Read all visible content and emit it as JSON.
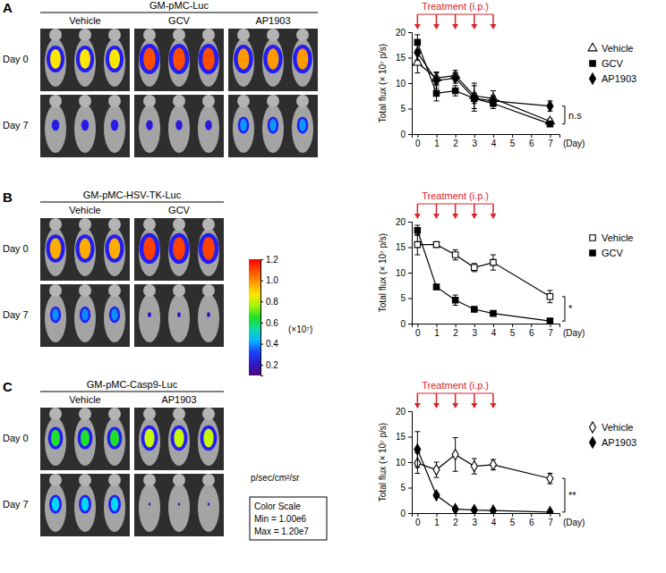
{
  "panels": [
    {
      "label": "A",
      "construct": "GM-pMC-Luc",
      "groups": [
        "Vehicle",
        "GCV",
        "AP1903"
      ],
      "rows": [
        "Day 0",
        "Day 7"
      ]
    },
    {
      "label": "B",
      "construct": "GM-pMC-HSV-TK-Luc",
      "groups": [
        "Vehicle",
        "GCV"
      ],
      "rows": [
        "Day 0",
        "Day 7"
      ]
    },
    {
      "label": "C",
      "construct": "GM-pMC-Casp9-Luc",
      "groups": [
        "Vehicle",
        "AP1903"
      ],
      "rows": [
        "Day 0",
        "Day 7"
      ]
    }
  ],
  "color_bar": {
    "range": [
      0.1,
      1.2
    ],
    "ticks": [
      0.2,
      0.4,
      0.6,
      0.8,
      {
        "value": 1,
        "label": "1.0"
      },
      1.2
    ],
    "label": "(×10⁷)",
    "unit": "p/sec/cm²/sr",
    "box": [
      "Color Scale",
      "Min = 1.00e6",
      "Max = 1.20e7"
    ]
  },
  "chart_data": [
    {
      "type": "line",
      "x": [
        0,
        1,
        2,
        3,
        4,
        7
      ],
      "xlim": [
        -0.3,
        7.5
      ],
      "xticks": [
        0,
        1,
        2,
        3,
        4,
        5,
        6,
        7
      ],
      "ylim": [
        0,
        20
      ],
      "yticks": [
        0,
        5,
        10,
        15,
        20
      ],
      "x_label": "(Day)",
      "y_label": "Total flux (× 10⁷ p/s)",
      "annotation": {
        "text": "Treatment (i.p.)",
        "x": [
          0,
          1,
          2,
          3,
          4
        ]
      },
      "significance": "n.s",
      "legend": "right",
      "series": [
        {
          "name": "Vehicle",
          "color": "#000000",
          "marker": "triangle-open",
          "values": [
            14,
            11,
            11.5,
            7.5,
            7,
            2.5
          ],
          "error": [
            2,
            1.2,
            1,
            2.5,
            1.5,
            0.5
          ]
        },
        {
          "name": "GCV",
          "color": "#000000",
          "marker": "square",
          "values": [
            18,
            8,
            8.5,
            7,
            6,
            2
          ],
          "error": [
            1.5,
            1.5,
            1,
            1,
            1,
            0.5
          ]
        },
        {
          "name": "AP1903",
          "color": "#000000",
          "marker": "diamond",
          "values": [
            16,
            10.5,
            11,
            7,
            6.5,
            5.5
          ],
          "error": [
            1.5,
            1.5,
            1,
            2.5,
            1,
            1
          ]
        }
      ]
    },
    {
      "type": "line",
      "x": [
        0,
        1,
        2,
        3,
        4,
        7
      ],
      "xlim": [
        -0.3,
        7.5
      ],
      "xticks": [
        0,
        1,
        2,
        3,
        4,
        5,
        6,
        7
      ],
      "ylim": [
        0,
        20
      ],
      "yticks": [
        0,
        5,
        10,
        15,
        20
      ],
      "x_label": "(Day)",
      "y_label": "Total flux (× 10⁷ p/s)",
      "annotation": {
        "text": "Treatment (i.p.)",
        "x": [
          0,
          1,
          2,
          3,
          4
        ]
      },
      "significance": "*",
      "legend": "right",
      "series": [
        {
          "name": "Vehicle",
          "color": "#000000",
          "marker": "square-open",
          "values": [
            15.5,
            15.5,
            13.5,
            11,
            12,
            5.3
          ],
          "error": [
            2,
            0.5,
            1,
            0.8,
            1.5,
            1.2
          ]
        },
        {
          "name": "GCV",
          "color": "#000000",
          "marker": "square",
          "values": [
            18.3,
            7.2,
            4.6,
            2.8,
            2,
            0.5
          ],
          "error": [
            1,
            0.4,
            1,
            0.4,
            0.3,
            0.3
          ]
        }
      ]
    },
    {
      "type": "line",
      "x": [
        0,
        1,
        2,
        3,
        4,
        7
      ],
      "xlim": [
        -0.3,
        7.5
      ],
      "xticks": [
        0,
        1,
        2,
        3,
        4,
        5,
        6,
        7
      ],
      "ylim": [
        0,
        20
      ],
      "yticks": [
        0,
        5,
        10,
        15,
        20
      ],
      "x_label": "(Day)",
      "y_label": "Total flux (× 10⁷ p/s)",
      "annotation": {
        "text": "Treatment (i.p.)",
        "x": [
          0,
          1,
          2,
          3,
          4
        ]
      },
      "significance": "**",
      "legend": "right",
      "series": [
        {
          "name": "Vehicle",
          "color": "#000000",
          "marker": "diamond-open",
          "values": [
            9.8,
            8.5,
            11.5,
            9.2,
            9.5,
            6.8
          ],
          "error": [
            2,
            1.5,
            3.3,
            1.5,
            1,
            1
          ]
        },
        {
          "name": "AP1903",
          "color": "#000000",
          "marker": "diamond",
          "values": [
            12.5,
            3.5,
            0.8,
            0.6,
            0.5,
            0.2
          ],
          "error": [
            3.5,
            0.4,
            0.2,
            0.2,
            0.1,
            0.1
          ]
        }
      ]
    }
  ]
}
